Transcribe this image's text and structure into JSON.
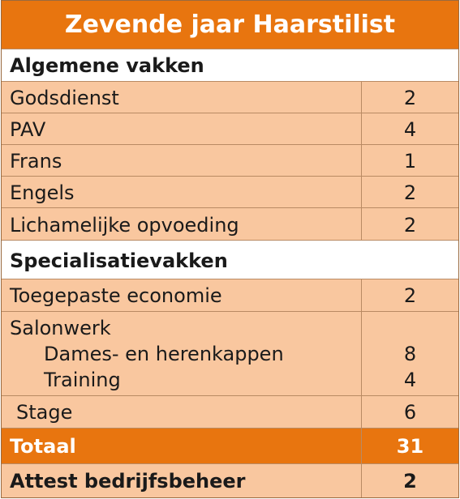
{
  "title": "Zevende jaar Haarstilist",
  "sections": {
    "algemene": "Algemene vakken",
    "specialisatie": "Specialisatievakken"
  },
  "rows": {
    "godsdienst": {
      "label": "Godsdienst",
      "value": "2"
    },
    "pav": {
      "label": "PAV",
      "value": "4"
    },
    "frans": {
      "label": "Frans",
      "value": "1"
    },
    "engels": {
      "label": "Engels",
      "value": "2"
    },
    "lo": {
      "label": "Lichamelijke opvoeding",
      "value": "2"
    },
    "economie": {
      "label": "Toegepaste economie",
      "value": "2"
    },
    "salonwerk": {
      "label": "Salonwerk",
      "sub1": {
        "label": "Dames- en herenkappen",
        "value": "8"
      },
      "sub2": {
        "label": "Training",
        "value": "4"
      }
    },
    "stage": {
      "label": "Stage",
      "value": "6"
    },
    "totaal": {
      "label": "Totaal",
      "value": "31"
    },
    "attest": {
      "label": "Attest bedrijfsbeheer",
      "value": "2"
    }
  },
  "colors": {
    "accent": "#e8750f",
    "row_fill": "#f9c79f",
    "section_fill": "#ffffff"
  }
}
